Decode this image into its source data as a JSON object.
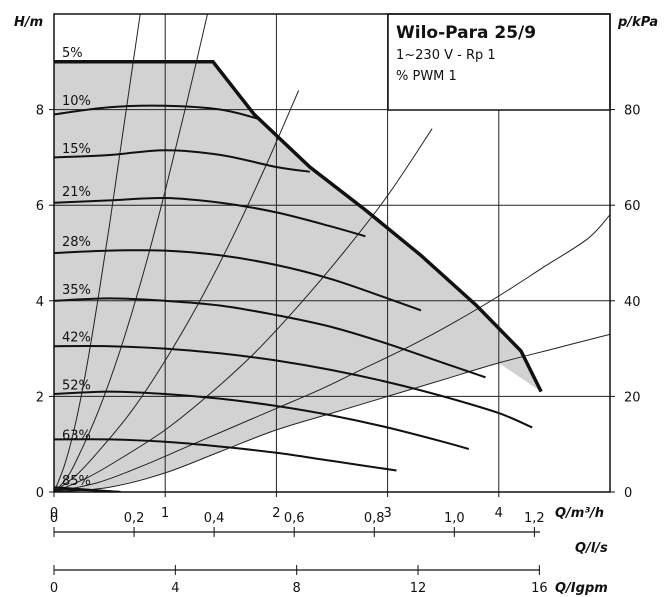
{
  "chart_data": {
    "type": "line",
    "title": "Wilo-Para 25/9",
    "subtitle_lines": [
      "1~230 V - Rp 1",
      "% PWM 1"
    ],
    "xlabel": "Q/m³/h",
    "ylabel_left": "H/m",
    "ylabel_right": "p/kPa",
    "xlim": [
      0,
      5
    ],
    "ylim": [
      0,
      10
    ],
    "right_ylim": [
      0,
      100
    ],
    "grid": true,
    "x_ticks": [
      {
        "v": 0,
        "label": "0"
      },
      {
        "v": 1,
        "label": "1"
      },
      {
        "v": 2,
        "label": "2"
      },
      {
        "v": 3,
        "label": "3"
      },
      {
        "v": 4,
        "label": "4"
      }
    ],
    "y_ticks": [
      {
        "v": 0,
        "label": "0"
      },
      {
        "v": 2,
        "label": "2"
      },
      {
        "v": 4,
        "label": "4"
      },
      {
        "v": 6,
        "label": "6"
      },
      {
        "v": 8,
        "label": "8"
      }
    ],
    "right_ticks": [
      {
        "v": 0,
        "label": "0"
      },
      {
        "v": 20,
        "label": "20"
      },
      {
        "v": 40,
        "label": "40"
      },
      {
        "v": 60,
        "label": "60"
      },
      {
        "v": 80,
        "label": "80"
      }
    ],
    "secondary_axes": [
      {
        "unit": "Q/l/s",
        "factor": 3.6,
        "ticks": [
          {
            "v": 0,
            "label": "0"
          },
          {
            "v": 0.2,
            "label": "0,2"
          },
          {
            "v": 0.4,
            "label": "0,4"
          },
          {
            "v": 0.6,
            "label": "0,6"
          },
          {
            "v": 0.8,
            "label": "0,8"
          },
          {
            "v": 1.0,
            "label": "1,0"
          },
          {
            "v": 1.2,
            "label": "1,2"
          }
        ]
      },
      {
        "unit": "Q/Igpm",
        "factor": 0.2728,
        "ticks": [
          {
            "v": 0,
            "label": "0"
          },
          {
            "v": 4,
            "label": "4"
          },
          {
            "v": 8,
            "label": "8"
          },
          {
            "v": 12,
            "label": "12"
          },
          {
            "v": 16,
            "label": "16"
          }
        ]
      }
    ],
    "envelope": {
      "x": [
        0,
        1.43,
        1.8,
        2.3,
        2.8,
        3.3,
        3.8,
        4.2,
        4.38
      ],
      "y": [
        9.0,
        9.0,
        7.9,
        6.8,
        5.9,
        4.95,
        3.9,
        2.95,
        2.1
      ]
    },
    "series": [
      {
        "name": "5%",
        "label_y": 9.2,
        "x": [
          0,
          0.6
        ],
        "y": [
          0.1,
          0.0
        ]
      },
      {
        "name": "10%",
        "label_y": 8.2,
        "x": [
          0,
          0.5,
          1.0,
          1.5,
          1.85
        ],
        "y": [
          7.9,
          8.05,
          8.08,
          8.0,
          7.8
        ]
      },
      {
        "name": "15%",
        "label_y": 7.2,
        "x": [
          0,
          0.5,
          1.0,
          1.5,
          2.0,
          2.3
        ],
        "y": [
          7.0,
          7.05,
          7.15,
          7.05,
          6.8,
          6.7
        ]
      },
      {
        "name": "21%",
        "label_y": 6.3,
        "x": [
          0,
          0.5,
          1.0,
          1.5,
          2.0,
          2.5,
          2.8
        ],
        "y": [
          6.05,
          6.1,
          6.15,
          6.05,
          5.85,
          5.55,
          5.35
        ]
      },
      {
        "name": "28%",
        "label_y": 5.25,
        "x": [
          0,
          0.5,
          1.0,
          1.5,
          2.0,
          2.5,
          3.0,
          3.3
        ],
        "y": [
          5.0,
          5.05,
          5.05,
          4.95,
          4.75,
          4.45,
          4.05,
          3.8
        ]
      },
      {
        "name": "35%",
        "label_y": 4.25,
        "x": [
          0,
          0.5,
          1.0,
          1.5,
          2.0,
          2.5,
          3.0,
          3.5,
          3.88
        ],
        "y": [
          4.0,
          4.05,
          4.0,
          3.9,
          3.7,
          3.45,
          3.1,
          2.7,
          2.4
        ]
      },
      {
        "name": "42%",
        "label_y": 3.25,
        "x": [
          0,
          0.5,
          1.0,
          1.5,
          2.0,
          2.5,
          3.0,
          3.5,
          4.0,
          4.3
        ],
        "y": [
          3.05,
          3.05,
          3.0,
          2.9,
          2.75,
          2.55,
          2.3,
          2.0,
          1.65,
          1.35
        ]
      },
      {
        "name": "52%",
        "label_y": 2.25,
        "x": [
          0,
          0.5,
          1.0,
          1.5,
          2.0,
          2.5,
          3.0,
          3.5,
          3.73
        ],
        "y": [
          2.05,
          2.1,
          2.05,
          1.95,
          1.8,
          1.6,
          1.35,
          1.05,
          0.9
        ]
      },
      {
        "name": "63%",
        "label_y": 1.2,
        "x": [
          0,
          0.5,
          1.0,
          1.5,
          2.0,
          2.5,
          3.08
        ],
        "y": [
          1.1,
          1.1,
          1.05,
          0.95,
          0.82,
          0.65,
          0.45
        ]
      },
      {
        "name": "85%",
        "label_y": 0.25,
        "x": [
          0,
          0.3,
          0.6
        ],
        "y": [
          0.05,
          0.04,
          0.0
        ]
      }
    ],
    "system_curves": [
      {
        "x": [
          0,
          0.5,
          1.0,
          1.5,
          2.0,
          2.5,
          3.0,
          3.5,
          4.0,
          4.5,
          5.0
        ],
        "y": [
          0,
          0.1,
          0.4,
          0.85,
          1.3,
          1.65,
          2.0,
          2.35,
          2.7,
          3.0,
          3.3
        ]
      },
      {
        "x": [
          0,
          0.4,
          0.8,
          1.2,
          1.6,
          2.0,
          2.4,
          2.8,
          3.2,
          3.6,
          4.0,
          4.4,
          4.8,
          5.0
        ],
        "y": [
          0,
          0.2,
          0.55,
          0.95,
          1.35,
          1.75,
          2.15,
          2.6,
          3.05,
          3.55,
          4.1,
          4.7,
          5.3,
          5.8
        ]
      },
      {
        "x": [
          0,
          0.3,
          0.6,
          1.0,
          1.4,
          1.8,
          2.2,
          2.6,
          3.0,
          3.4
        ],
        "y": [
          0,
          0.3,
          0.7,
          1.3,
          2.05,
          2.9,
          3.9,
          5.0,
          6.2,
          7.6
        ]
      },
      {
        "x": [
          0,
          0.2,
          0.4,
          0.7,
          1.0,
          1.3,
          1.6,
          1.9,
          2.2
        ],
        "y": [
          0,
          0.35,
          0.85,
          1.7,
          2.75,
          3.95,
          5.3,
          6.8,
          8.4
        ]
      },
      {
        "x": [
          0,
          0.1,
          0.2,
          0.4,
          0.6,
          0.8,
          1.0,
          1.2,
          1.4,
          1.5
        ],
        "y": [
          0,
          0.25,
          0.65,
          1.7,
          3.0,
          4.55,
          6.3,
          8.2,
          10.2,
          11.2
        ]
      },
      {
        "x": [
          0,
          0.1,
          0.2,
          0.3,
          0.4,
          0.5,
          0.6,
          0.7,
          0.8,
          0.9
        ],
        "y": [
          0,
          0.6,
          1.5,
          2.7,
          4.1,
          5.6,
          7.2,
          8.8,
          10.4,
          12.0
        ]
      }
    ]
  }
}
